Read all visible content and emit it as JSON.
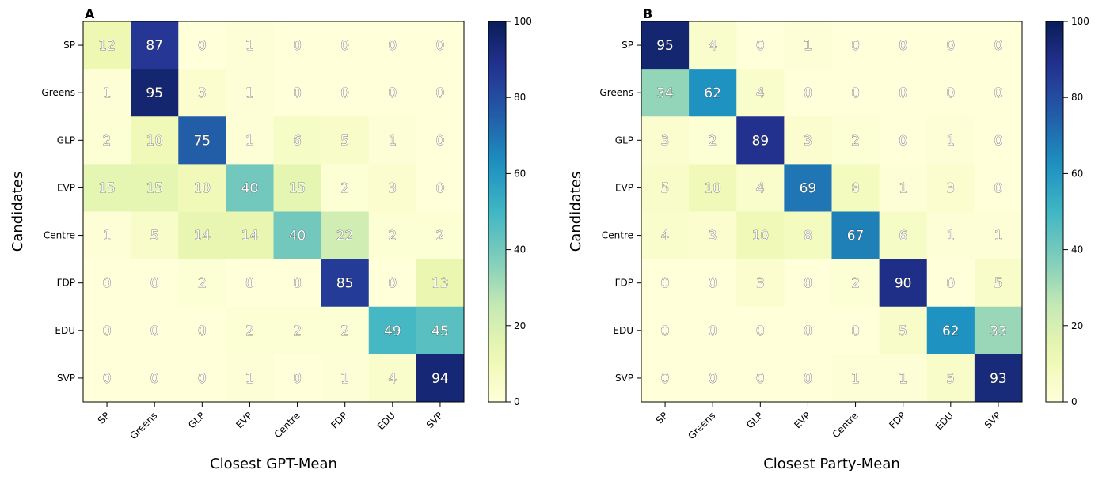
{
  "chart_data": [
    {
      "type": "heatmap",
      "panel_label": "A",
      "xlabel": "Closest GPT-Mean",
      "ylabel": "Candidates",
      "x_categories": [
        "SP",
        "Greens",
        "GLP",
        "EVP",
        "Centre",
        "FDP",
        "EDU",
        "SVP"
      ],
      "y_categories": [
        "SP",
        "Greens",
        "GLP",
        "EVP",
        "Centre",
        "FDP",
        "EDU",
        "SVP"
      ],
      "values": [
        [
          12,
          87,
          0,
          1,
          0,
          0,
          0,
          0
        ],
        [
          1,
          95,
          3,
          1,
          0,
          0,
          0,
          0
        ],
        [
          2,
          10,
          75,
          1,
          6,
          5,
          1,
          0
        ],
        [
          15,
          15,
          10,
          40,
          15,
          2,
          3,
          0
        ],
        [
          1,
          5,
          14,
          14,
          40,
          22,
          2,
          2
        ],
        [
          0,
          0,
          2,
          0,
          0,
          85,
          0,
          13
        ],
        [
          0,
          0,
          0,
          2,
          2,
          2,
          49,
          45
        ],
        [
          0,
          0,
          0,
          1,
          0,
          1,
          4,
          94
        ]
      ],
      "colorbar": {
        "min": 0,
        "max": 100,
        "ticks": [
          "0",
          "20",
          "40",
          "60",
          "80",
          "100"
        ],
        "colormap": "YlGnBu"
      }
    },
    {
      "type": "heatmap",
      "panel_label": "B",
      "xlabel": "Closest Party-Mean",
      "ylabel": "Candidates",
      "x_categories": [
        "SP",
        "Greens",
        "GLP",
        "EVP",
        "Centre",
        "FDP",
        "EDU",
        "SVP"
      ],
      "y_categories": [
        "SP",
        "Greens",
        "GLP",
        "EVP",
        "Centre",
        "FDP",
        "EDU",
        "SVP"
      ],
      "values": [
        [
          95,
          4,
          0,
          1,
          0,
          0,
          0,
          0
        ],
        [
          34,
          62,
          4,
          0,
          0,
          0,
          0,
          0
        ],
        [
          3,
          2,
          89,
          3,
          2,
          0,
          1,
          0
        ],
        [
          5,
          10,
          4,
          69,
          8,
          1,
          3,
          0
        ],
        [
          4,
          3,
          10,
          8,
          67,
          6,
          1,
          1
        ],
        [
          0,
          0,
          3,
          0,
          2,
          90,
          0,
          5
        ],
        [
          0,
          0,
          0,
          0,
          0,
          5,
          62,
          33
        ],
        [
          0,
          0,
          0,
          0,
          1,
          1,
          5,
          93
        ]
      ],
      "colorbar": {
        "min": 0,
        "max": 100,
        "ticks": [
          "0",
          "20",
          "40",
          "60",
          "80",
          "100"
        ],
        "colormap": "YlGnBu"
      }
    }
  ]
}
